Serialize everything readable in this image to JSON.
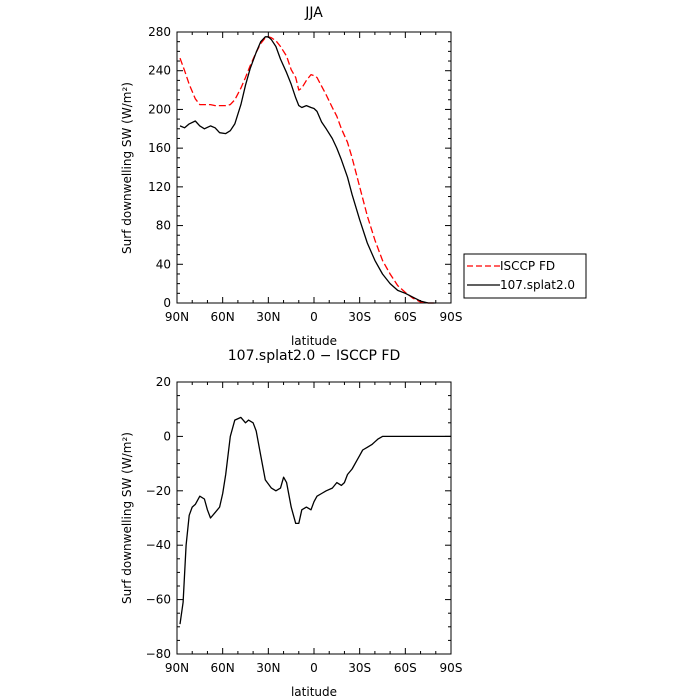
{
  "chart_data": [
    {
      "type": "line",
      "title": "JJA",
      "xlabel": "latitude",
      "ylabel": "Surf downwelling SW (W/m²)",
      "x_ticks": [
        "90N",
        "60N",
        "30N",
        "0",
        "30S",
        "60S",
        "90S"
      ],
      "x_tick_values": [
        90,
        60,
        30,
        0,
        -30,
        -60,
        -90
      ],
      "xlim": [
        90,
        -90
      ],
      "ylim": [
        0,
        280
      ],
      "y_ticks": [
        0,
        40,
        80,
        120,
        160,
        200,
        240,
        280
      ],
      "legend_placement": "right",
      "series": [
        {
          "name": "ISCCP FD",
          "color": "#ff0000",
          "style": "dashed",
          "x": [
            88,
            85,
            82,
            78,
            75,
            72,
            68,
            65,
            62,
            58,
            55,
            52,
            48,
            45,
            42,
            38,
            35,
            32,
            30,
            28,
            25,
            22,
            18,
            15,
            12,
            10,
            8,
            5,
            2,
            0,
            -2,
            -5,
            -8,
            -12,
            -15,
            -18,
            -22,
            -25,
            -30,
            -35,
            -40,
            -45,
            -50,
            -55,
            -60,
            -65,
            -70,
            -75,
            -78,
            -80
          ],
          "values": [
            253,
            240,
            226,
            211,
            205,
            205,
            205,
            204,
            204,
            204,
            205,
            210,
            222,
            233,
            245,
            259,
            268,
            274,
            275,
            274,
            271,
            265,
            255,
            241,
            233,
            220,
            222,
            230,
            236,
            235,
            233,
            224,
            215,
            202,
            193,
            180,
            166,
            150,
            120,
            90,
            65,
            44,
            30,
            18,
            11,
            5,
            1,
            0,
            0,
            0
          ]
        },
        {
          "name": "107.splat2.0",
          "color": "#000000",
          "style": "solid",
          "x": [
            88,
            85,
            82,
            78,
            75,
            72,
            68,
            65,
            62,
            58,
            55,
            52,
            48,
            45,
            42,
            38,
            35,
            32,
            30,
            28,
            25,
            22,
            18,
            15,
            12,
            10,
            8,
            5,
            2,
            0,
            -2,
            -5,
            -8,
            -12,
            -15,
            -18,
            -22,
            -25,
            -30,
            -35,
            -40,
            -45,
            -50,
            -55,
            -60,
            -65,
            -70,
            -75,
            -78,
            -80
          ],
          "values": [
            183,
            181,
            185,
            188,
            183,
            180,
            183,
            181,
            176,
            175,
            178,
            185,
            205,
            225,
            242,
            259,
            270,
            275,
            275,
            272,
            265,
            252,
            238,
            226,
            212,
            204,
            202,
            204,
            202,
            201,
            198,
            187,
            180,
            170,
            160,
            148,
            130,
            112,
            86,
            62,
            44,
            30,
            20,
            13,
            10,
            6,
            2,
            0,
            0,
            0
          ]
        }
      ]
    },
    {
      "type": "line",
      "title": "107.splat2.0 − ISCCP FD",
      "xlabel": "latitude",
      "ylabel": "Surf downwelling SW (W/m²)",
      "x_ticks": [
        "90N",
        "60N",
        "30N",
        "0",
        "30S",
        "60S",
        "90S"
      ],
      "x_tick_values": [
        90,
        60,
        30,
        0,
        -30,
        -60,
        -90
      ],
      "xlim": [
        90,
        -90
      ],
      "ylim": [
        -80,
        20
      ],
      "y_ticks": [
        -80,
        -60,
        -40,
        -20,
        0,
        20
      ],
      "series": [
        {
          "color": "#000000",
          "style": "solid",
          "x": [
            88,
            86,
            84,
            82,
            80,
            78,
            75,
            72,
            70,
            68,
            65,
            62,
            60,
            58,
            55,
            52,
            48,
            45,
            43,
            40,
            38,
            35,
            32,
            28,
            25,
            22,
            20,
            18,
            15,
            12,
            10,
            8,
            5,
            2,
            0,
            -2,
            -5,
            -8,
            -12,
            -15,
            -18,
            -20,
            -22,
            -25,
            -28,
            -30,
            -32,
            -35,
            -38,
            -40,
            -42,
            -45,
            -48,
            -50,
            -55,
            -60,
            -63,
            -65,
            -70,
            -75,
            -80,
            -85,
            -90
          ],
          "values": [
            -69,
            -61,
            -40,
            -29,
            -26,
            -25,
            -22,
            -23,
            -27,
            -30,
            -28,
            -26,
            -21,
            -14,
            0,
            6,
            7,
            5,
            6,
            5,
            2,
            -7,
            -16,
            -19,
            -20,
            -19,
            -15,
            -17,
            -26,
            -32,
            -32,
            -27,
            -26,
            -27,
            -24,
            -22,
            -21,
            -20,
            -19,
            -17,
            -18,
            -17,
            -14,
            -12,
            -9,
            -7,
            -5,
            -4,
            -3,
            -2,
            -1,
            0,
            0,
            0,
            0,
            0,
            0,
            0,
            0,
            0,
            0,
            0,
            0
          ]
        }
      ]
    }
  ]
}
